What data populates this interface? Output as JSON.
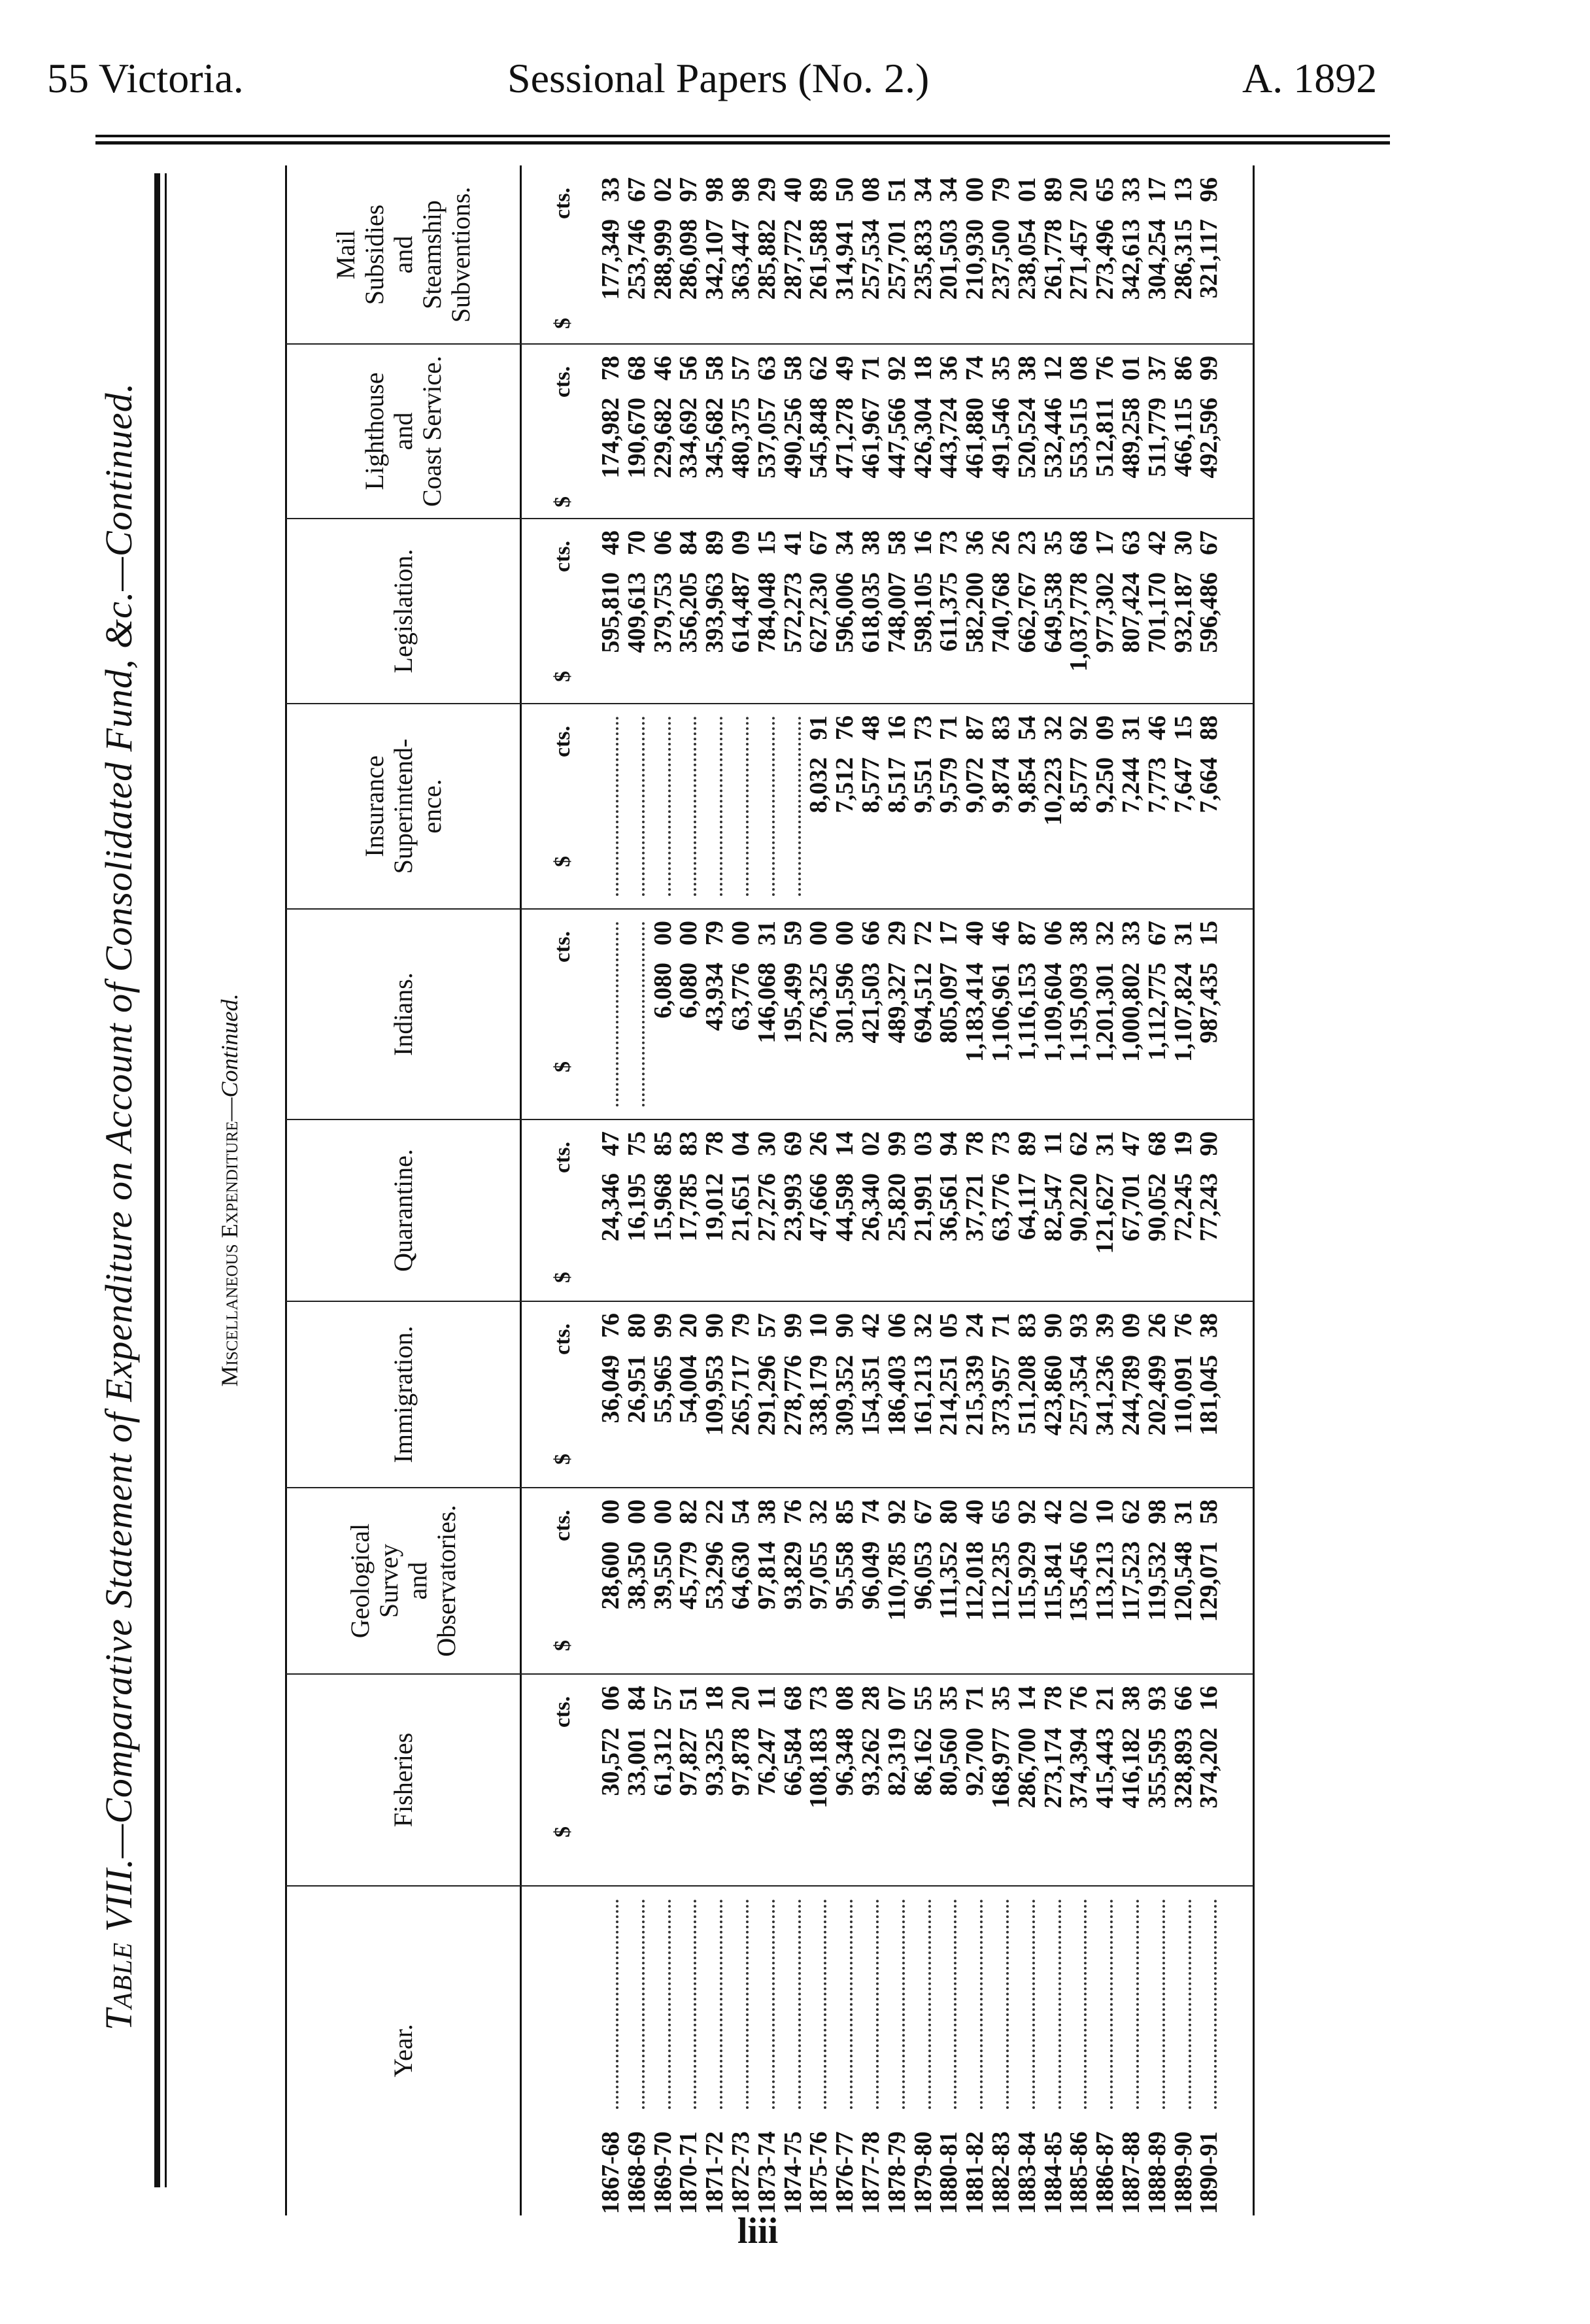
{
  "page_header": {
    "left": "55 Victoria.",
    "center": "Sessional Papers (No. 2.)",
    "right": "A. 1892"
  },
  "title": {
    "prefix_smallcaps": "Table",
    "main": " VIII.—Comparative Statement of Expenditure on Account of Consolidated Fund, &c.—",
    "suffix_italic": "Continued."
  },
  "subtitle": {
    "smallcaps": "Miscellaneous Expenditure—",
    "italic": "Continued."
  },
  "units": {
    "dollar": "$",
    "cents": "cts."
  },
  "columns": [
    {
      "key": "year",
      "header": [
        "Year."
      ]
    },
    {
      "key": "fisheries",
      "header": [
        "Fisheries"
      ]
    },
    {
      "key": "geological",
      "header": [
        "Geological",
        "Survey",
        "and",
        "Observatories."
      ]
    },
    {
      "key": "immigration",
      "header": [
        "Immigration."
      ]
    },
    {
      "key": "quarantine",
      "header": [
        "Quarantine."
      ]
    },
    {
      "key": "indians",
      "header": [
        "Indians."
      ]
    },
    {
      "key": "insurance",
      "header": [
        "Insurance",
        "Superintend-",
        "ence."
      ]
    },
    {
      "key": "legislation",
      "header": [
        "Legislation."
      ]
    },
    {
      "key": "lighthouse",
      "header": [
        "Lighthouse",
        "and",
        "Coast Service."
      ]
    },
    {
      "key": "mail",
      "header": [
        "Mail",
        "Subsidies",
        "and",
        "Steamship",
        "Subventions."
      ]
    }
  ],
  "rows": [
    {
      "year": "1867-68",
      "values": [
        [
          "30,572",
          "06"
        ],
        [
          "28,600",
          "00"
        ],
        [
          "36,049",
          "76"
        ],
        [
          "24,346",
          "47"
        ],
        null,
        null,
        [
          "595,810",
          "48"
        ],
        [
          "174,982",
          "78"
        ],
        [
          "177,349",
          "33"
        ]
      ]
    },
    {
      "year": "1868-69",
      "values": [
        [
          "33,001",
          "84"
        ],
        [
          "38,350",
          "00"
        ],
        [
          "26,951",
          "80"
        ],
        [
          "16,195",
          "75"
        ],
        null,
        null,
        [
          "409,613",
          "70"
        ],
        [
          "190,670",
          "68"
        ],
        [
          "253,746",
          "67"
        ]
      ]
    },
    {
      "year": "1869-70",
      "values": [
        [
          "61,312",
          "57"
        ],
        [
          "39,550",
          "00"
        ],
        [
          "55,965",
          "99"
        ],
        [
          "15,968",
          "85"
        ],
        [
          "6,080",
          "00"
        ],
        null,
        [
          "379,753",
          "06"
        ],
        [
          "229,682",
          "46"
        ],
        [
          "288,999",
          "02"
        ]
      ]
    },
    {
      "year": "1870-71",
      "values": [
        [
          "97,827",
          "51"
        ],
        [
          "45,779",
          "82"
        ],
        [
          "54,004",
          "20"
        ],
        [
          "17,785",
          "83"
        ],
        [
          "6,080",
          "00"
        ],
        null,
        [
          "356,205",
          "84"
        ],
        [
          "334,692",
          "56"
        ],
        [
          "286,098",
          "97"
        ]
      ]
    },
    {
      "year": "1871-72",
      "values": [
        [
          "93,325",
          "18"
        ],
        [
          "53,296",
          "22"
        ],
        [
          "109,953",
          "90"
        ],
        [
          "19,012",
          "78"
        ],
        [
          "43,934",
          "79"
        ],
        null,
        [
          "393,963",
          "89"
        ],
        [
          "345,682",
          "58"
        ],
        [
          "342,107",
          "98"
        ]
      ]
    },
    {
      "year": "1872-73",
      "values": [
        [
          "97,878",
          "20"
        ],
        [
          "64,630",
          "54"
        ],
        [
          "265,717",
          "79"
        ],
        [
          "21,651",
          "04"
        ],
        [
          "63,776",
          "00"
        ],
        null,
        [
          "614,487",
          "09"
        ],
        [
          "480,375",
          "57"
        ],
        [
          "363,447",
          "98"
        ]
      ]
    },
    {
      "year": "1873-74",
      "values": [
        [
          "76,247",
          "11"
        ],
        [
          "97,814",
          "38"
        ],
        [
          "291,296",
          "57"
        ],
        [
          "27,276",
          "30"
        ],
        [
          "146,068",
          "31"
        ],
        null,
        [
          "784,048",
          "15"
        ],
        [
          "537,057",
          "63"
        ],
        [
          "285,882",
          "29"
        ]
      ]
    },
    {
      "year": "1874-75",
      "values": [
        [
          "66,584",
          "68"
        ],
        [
          "93,829",
          "76"
        ],
        [
          "278,776",
          "99"
        ],
        [
          "23,993",
          "69"
        ],
        [
          "195,499",
          "59"
        ],
        null,
        [
          "572,273",
          "41"
        ],
        [
          "490,256",
          "58"
        ],
        [
          "287,772",
          "40"
        ]
      ]
    },
    {
      "year": "1875-76",
      "values": [
        [
          "108,183",
          "73"
        ],
        [
          "97,055",
          "32"
        ],
        [
          "338,179",
          "10"
        ],
        [
          "47,666",
          "26"
        ],
        [
          "276,325",
          "00"
        ],
        [
          "8,032",
          "91"
        ],
        [
          "627,230",
          "67"
        ],
        [
          "545,848",
          "62"
        ],
        [
          "261,588",
          "89"
        ]
      ]
    },
    {
      "year": "1876-77",
      "values": [
        [
          "96,348",
          "08"
        ],
        [
          "95,558",
          "85"
        ],
        [
          "309,352",
          "90"
        ],
        [
          "44,598",
          "14"
        ],
        [
          "301,596",
          "00"
        ],
        [
          "7,512",
          "76"
        ],
        [
          "596,006",
          "34"
        ],
        [
          "471,278",
          "49"
        ],
        [
          "314,941",
          "50"
        ]
      ]
    },
    {
      "year": "1877-78",
      "values": [
        [
          "93,262",
          "28"
        ],
        [
          "96,049",
          "74"
        ],
        [
          "154,351",
          "42"
        ],
        [
          "26,340",
          "02"
        ],
        [
          "421,503",
          "66"
        ],
        [
          "8,577",
          "48"
        ],
        [
          "618,035",
          "38"
        ],
        [
          "461,967",
          "71"
        ],
        [
          "257,534",
          "08"
        ]
      ]
    },
    {
      "year": "1878-79",
      "values": [
        [
          "82,319",
          "07"
        ],
        [
          "110,785",
          "92"
        ],
        [
          "186,403",
          "06"
        ],
        [
          "25,820",
          "99"
        ],
        [
          "489,327",
          "29"
        ],
        [
          "8,517",
          "16"
        ],
        [
          "748,007",
          "58"
        ],
        [
          "447,566",
          "92"
        ],
        [
          "257,701",
          "51"
        ]
      ]
    },
    {
      "year": "1879-80",
      "values": [
        [
          "86,162",
          "55"
        ],
        [
          "96,053",
          "67"
        ],
        [
          "161,213",
          "32"
        ],
        [
          "21,991",
          "03"
        ],
        [
          "694,512",
          "72"
        ],
        [
          "9,551",
          "73"
        ],
        [
          "598,105",
          "16"
        ],
        [
          "426,304",
          "18"
        ],
        [
          "235,833",
          "34"
        ]
      ]
    },
    {
      "year": "1880-81",
      "values": [
        [
          "80,560",
          "35"
        ],
        [
          "111,352",
          "80"
        ],
        [
          "214,251",
          "05"
        ],
        [
          "36,561",
          "94"
        ],
        [
          "805,097",
          "17"
        ],
        [
          "9,579",
          "71"
        ],
        [
          "611,375",
          "73"
        ],
        [
          "443,724",
          "36"
        ],
        [
          "201,503",
          "34"
        ]
      ]
    },
    {
      "year": "1881-82",
      "values": [
        [
          "92,700",
          "71"
        ],
        [
          "112,018",
          "40"
        ],
        [
          "215,339",
          "24"
        ],
        [
          "37,721",
          "78"
        ],
        [
          "1,183,414",
          "40"
        ],
        [
          "9,072",
          "87"
        ],
        [
          "582,200",
          "36"
        ],
        [
          "461,880",
          "74"
        ],
        [
          "210,930",
          "00"
        ]
      ]
    },
    {
      "year": "1882-83",
      "values": [
        [
          "168,977",
          "35"
        ],
        [
          "112,235",
          "65"
        ],
        [
          "373,957",
          "71"
        ],
        [
          "63,776",
          "73"
        ],
        [
          "1,106,961",
          "46"
        ],
        [
          "9,874",
          "83"
        ],
        [
          "740,768",
          "26"
        ],
        [
          "491,546",
          "35"
        ],
        [
          "237,500",
          "79"
        ]
      ]
    },
    {
      "year": "1883-84",
      "values": [
        [
          "286,700",
          "14"
        ],
        [
          "115,929",
          "92"
        ],
        [
          "511,208",
          "83"
        ],
        [
          "64,117",
          "89"
        ],
        [
          "1,116,153",
          "87"
        ],
        [
          "9,854",
          "54"
        ],
        [
          "662,767",
          "23"
        ],
        [
          "520,524",
          "38"
        ],
        [
          "238,054",
          "01"
        ]
      ]
    },
    {
      "year": "1884-85",
      "values": [
        [
          "273,174",
          "78"
        ],
        [
          "115,841",
          "42"
        ],
        [
          "423,860",
          "90"
        ],
        [
          "82,547",
          "11"
        ],
        [
          "1,109,604",
          "06"
        ],
        [
          "10,223",
          "32"
        ],
        [
          "649,538",
          "35"
        ],
        [
          "532,446",
          "12"
        ],
        [
          "261,778",
          "89"
        ]
      ]
    },
    {
      "year": "1885-86",
      "values": [
        [
          "374,394",
          "76"
        ],
        [
          "135,456",
          "02"
        ],
        [
          "257,354",
          "93"
        ],
        [
          "90,220",
          "62"
        ],
        [
          "1,195,093",
          "38"
        ],
        [
          "8,577",
          "92"
        ],
        [
          "1,037,778",
          "68"
        ],
        [
          "553,515",
          "08"
        ],
        [
          "271,457",
          "20"
        ]
      ]
    },
    {
      "year": "1886-87",
      "values": [
        [
          "415,443",
          "21"
        ],
        [
          "113,213",
          "10"
        ],
        [
          "341,236",
          "39"
        ],
        [
          "121,627",
          "31"
        ],
        [
          "1,201,301",
          "32"
        ],
        [
          "9,250",
          "09"
        ],
        [
          "977,302",
          "17"
        ],
        [
          "512,811",
          "76"
        ],
        [
          "273,496",
          "65"
        ]
      ]
    },
    {
      "year": "1887-88",
      "values": [
        [
          "416,182",
          "38"
        ],
        [
          "117,523",
          "62"
        ],
        [
          "244,789",
          "09"
        ],
        [
          "67,701",
          "47"
        ],
        [
          "1,000,802",
          "33"
        ],
        [
          "7,244",
          "31"
        ],
        [
          "807,424",
          "63"
        ],
        [
          "489,258",
          "01"
        ],
        [
          "342,613",
          "33"
        ]
      ]
    },
    {
      "year": "1888-89",
      "values": [
        [
          "355,595",
          "93"
        ],
        [
          "119,532",
          "98"
        ],
        [
          "202,499",
          "26"
        ],
        [
          "90,052",
          "68"
        ],
        [
          "1,112,775",
          "67"
        ],
        [
          "7,773",
          "46"
        ],
        [
          "701,170",
          "42"
        ],
        [
          "511,779",
          "37"
        ],
        [
          "304,254",
          "17"
        ]
      ]
    },
    {
      "year": "1889-90",
      "values": [
        [
          "328,893",
          "66"
        ],
        [
          "120,548",
          "31"
        ],
        [
          "110,091",
          "76"
        ],
        [
          "72,245",
          "19"
        ],
        [
          "1,107,824",
          "31"
        ],
        [
          "7,647",
          "15"
        ],
        [
          "932,187",
          "30"
        ],
        [
          "466,115",
          "86"
        ],
        [
          "286,315",
          "13"
        ]
      ]
    },
    {
      "year": "1890-91",
      "values": [
        [
          "374,202",
          "16"
        ],
        [
          "129,071",
          "58"
        ],
        [
          "181,045",
          "38"
        ],
        [
          "77,243",
          "90"
        ],
        [
          "987,435",
          "15"
        ],
        [
          "7,664",
          "88"
        ],
        [
          "596,486",
          "67"
        ],
        [
          "492,596",
          "99"
        ],
        [
          "321,117",
          "96"
        ]
      ]
    }
  ],
  "page_number": "liii"
}
